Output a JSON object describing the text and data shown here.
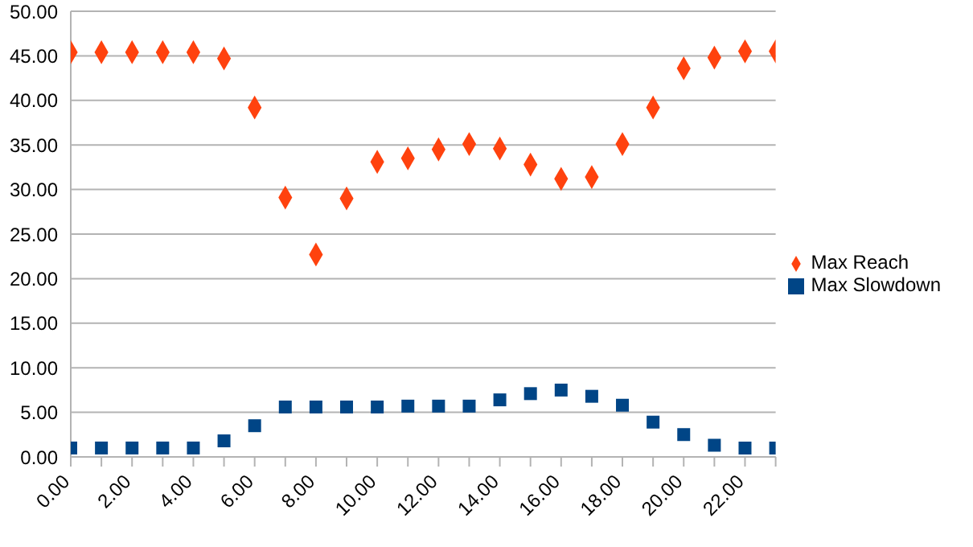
{
  "chart_data": {
    "type": "scatter",
    "x": [
      0,
      1,
      2,
      3,
      4,
      5,
      6,
      7,
      8,
      9,
      10,
      11,
      12,
      13,
      14,
      15,
      16,
      17,
      18,
      19,
      20,
      21,
      22,
      23
    ],
    "series": [
      {
        "name": "Max Slowdown",
        "color": "#004586",
        "marker": "square",
        "values": [
          1.0,
          1.0,
          1.0,
          1.0,
          1.0,
          1.8,
          3.5,
          5.6,
          5.6,
          5.6,
          5.6,
          5.7,
          5.7,
          5.7,
          6.4,
          7.1,
          7.5,
          6.8,
          5.8,
          3.9,
          2.5,
          1.3,
          1.0,
          1.0
        ]
      },
      {
        "name": "Max Reach",
        "color": "#ff420e",
        "marker": "diamond",
        "values": [
          45.4,
          45.4,
          45.4,
          45.4,
          45.4,
          44.7,
          39.2,
          29.1,
          22.7,
          29.0,
          33.1,
          33.5,
          34.5,
          35.1,
          34.6,
          32.8,
          31.2,
          31.4,
          35.1,
          39.2,
          43.6,
          44.8,
          45.5,
          45.5
        ]
      }
    ],
    "xlim": [
      0,
      23
    ],
    "xticks": [
      {
        "value": 0,
        "label": "0.00"
      },
      {
        "value": 1,
        "label": null
      },
      {
        "value": 2,
        "label": "2.00"
      },
      {
        "value": 3,
        "label": null
      },
      {
        "value": 4,
        "label": "4.00"
      },
      {
        "value": 5,
        "label": null
      },
      {
        "value": 6,
        "label": "6.00"
      },
      {
        "value": 7,
        "label": null
      },
      {
        "value": 8,
        "label": "8.00"
      },
      {
        "value": 9,
        "label": null
      },
      {
        "value": 10,
        "label": "10.00"
      },
      {
        "value": 11,
        "label": null
      },
      {
        "value": 12,
        "label": "12.00"
      },
      {
        "value": 13,
        "label": null
      },
      {
        "value": 14,
        "label": "14.00"
      },
      {
        "value": 15,
        "label": null
      },
      {
        "value": 16,
        "label": "16.00"
      },
      {
        "value": 17,
        "label": null
      },
      {
        "value": 18,
        "label": "18.00"
      },
      {
        "value": 19,
        "label": null
      },
      {
        "value": 20,
        "label": "20.00"
      },
      {
        "value": 21,
        "label": null
      },
      {
        "value": 22,
        "label": "22.00"
      },
      {
        "value": 23,
        "label": null
      }
    ],
    "ylim": [
      0,
      50
    ],
    "yticks": [
      {
        "value": 0,
        "label": "0.00"
      },
      {
        "value": 5,
        "label": "5.00"
      },
      {
        "value": 10,
        "label": "10.00"
      },
      {
        "value": 15,
        "label": "15.00"
      },
      {
        "value": 20,
        "label": "20.00"
      },
      {
        "value": 25,
        "label": "25.00"
      },
      {
        "value": 30,
        "label": "30.00"
      },
      {
        "value": 35,
        "label": "35.00"
      },
      {
        "value": 40,
        "label": "40.00"
      },
      {
        "value": 45,
        "label": "45.00"
      },
      {
        "value": 50,
        "label": "50.00"
      }
    ],
    "grid": "y",
    "legend": "right"
  }
}
